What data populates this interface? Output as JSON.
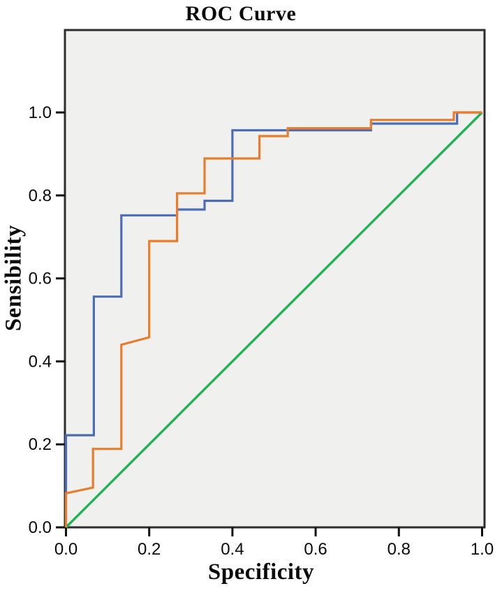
{
  "figure": {
    "title": "ROC Curve",
    "x_axis_label": "Specificity",
    "y_axis_label": "Sensibility"
  },
  "chart_data": {
    "type": "line",
    "subtype": "roc-step-curves",
    "title": "ROC Curve",
    "xlabel": "Specificity",
    "ylabel": "Sensibility",
    "xlim": [
      0.0,
      1.0
    ],
    "ylim": [
      0.0,
      1.2
    ],
    "x_ticks": [
      "0.0",
      "0.2",
      "0.4",
      "0.6",
      "0.8",
      "1.0"
    ],
    "y_ticks": [
      "0.0",
      "0.2",
      "0.4",
      "0.6",
      "0.8",
      "1.0"
    ],
    "grid": false,
    "legend_position": "none",
    "plot_bg": "#f0f0ef",
    "border_color": "#2d2d2d",
    "tick_color": "#111111",
    "tick_label_color": "#0b0b0b",
    "series": [
      {
        "name": "reference-diagonal",
        "color": "#20b254",
        "width": 3.4,
        "points": [
          [
            0,
            0
          ],
          [
            1,
            1
          ]
        ]
      },
      {
        "name": "roc-curve-blue",
        "color": "#4c6cb3",
        "width": 3.2,
        "points": [
          [
            0,
            0
          ],
          [
            0,
            0.222
          ],
          [
            0.067,
            0.222
          ],
          [
            0.067,
            0.556
          ],
          [
            0.133,
            0.556
          ],
          [
            0.133,
            0.752
          ],
          [
            0.267,
            0.752
          ],
          [
            0.267,
            0.766
          ],
          [
            0.333,
            0.766
          ],
          [
            0.333,
            0.787
          ],
          [
            0.4,
            0.787
          ],
          [
            0.4,
            0.957
          ],
          [
            0.733,
            0.957
          ],
          [
            0.733,
            0.973
          ],
          [
            0.94,
            0.973
          ],
          [
            0.94,
            1.0
          ],
          [
            1,
            1
          ]
        ]
      },
      {
        "name": "roc-curve-orange",
        "color": "#e87e2d",
        "width": 3.2,
        "points": [
          [
            0,
            0
          ],
          [
            0,
            0.082
          ],
          [
            0.065,
            0.096
          ],
          [
            0.065,
            0.189
          ],
          [
            0.133,
            0.189
          ],
          [
            0.133,
            0.44
          ],
          [
            0.2,
            0.458
          ],
          [
            0.2,
            0.69
          ],
          [
            0.267,
            0.69
          ],
          [
            0.267,
            0.805
          ],
          [
            0.333,
            0.805
          ],
          [
            0.333,
            0.889
          ],
          [
            0.465,
            0.889
          ],
          [
            0.465,
            0.943
          ],
          [
            0.533,
            0.943
          ],
          [
            0.533,
            0.962
          ],
          [
            0.733,
            0.962
          ],
          [
            0.733,
            0.982
          ],
          [
            0.932,
            0.982
          ],
          [
            0.932,
            1.0
          ],
          [
            1,
            1
          ]
        ]
      }
    ]
  }
}
